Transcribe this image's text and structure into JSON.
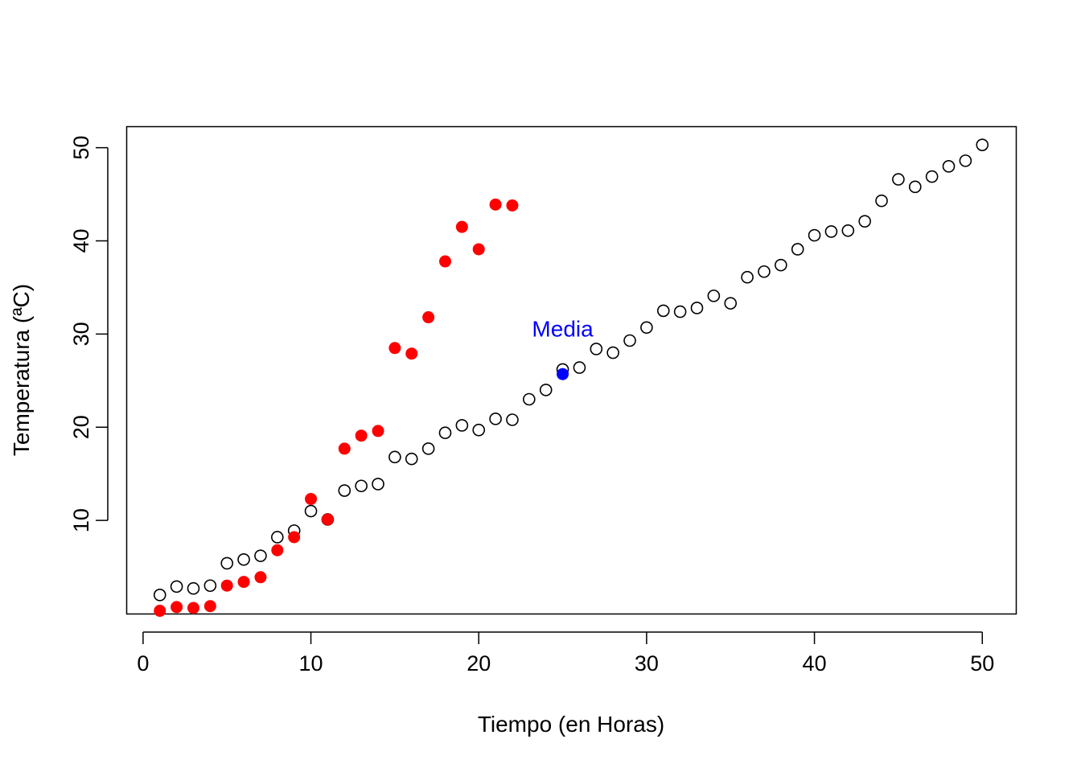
{
  "chart_data": {
    "type": "scatter",
    "title": "",
    "xlabel": "Tiempo (en Horas)",
    "ylabel": "Temperatura (ªC)",
    "xlim": [
      -1,
      52
    ],
    "ylim": [
      0,
      52.3
    ],
    "xticks": [
      0,
      10,
      20,
      30,
      40,
      50
    ],
    "yticks": [
      10,
      20,
      30,
      40,
      50
    ],
    "grid": false,
    "series": [
      {
        "style": "open-circle",
        "color": "#000000",
        "x": [
          1,
          2,
          3,
          4,
          5,
          6,
          7,
          8,
          9,
          10,
          11,
          12,
          13,
          14,
          15,
          16,
          17,
          18,
          19,
          20,
          21,
          22,
          23,
          24,
          25,
          26,
          27,
          28,
          29,
          30,
          31,
          32,
          33,
          34,
          35,
          36,
          37,
          38,
          39,
          40,
          41,
          42,
          43,
          44,
          45,
          46,
          47,
          48,
          49,
          50
        ],
        "y": [
          2.0,
          2.9,
          2.7,
          3.0,
          5.4,
          5.8,
          6.2,
          8.2,
          8.9,
          11.0,
          10.1,
          13.2,
          13.7,
          13.9,
          16.8,
          16.6,
          17.7,
          19.4,
          20.2,
          19.7,
          20.9,
          20.8,
          23.0,
          24.0,
          26.2,
          26.4,
          28.4,
          28.0,
          29.3,
          30.7,
          32.5,
          32.4,
          32.8,
          34.1,
          33.3,
          36.1,
          36.7,
          37.4,
          39.1,
          40.6,
          41.0,
          41.1,
          42.1,
          44.3,
          46.6,
          45.8,
          46.9,
          48.0,
          48.6,
          50.3
        ]
      },
      {
        "style": "filled-circle",
        "color": "#ff0000",
        "x": [
          1,
          2,
          3,
          4,
          5,
          6,
          7,
          8,
          9,
          10,
          11,
          12,
          13,
          14,
          15,
          16,
          17,
          18,
          19,
          20,
          21,
          22
        ],
        "y": [
          0.3,
          0.7,
          0.6,
          0.8,
          3.0,
          3.4,
          3.9,
          6.8,
          8.2,
          12.3,
          10.1,
          17.7,
          19.1,
          19.6,
          28.5,
          27.9,
          31.8,
          37.8,
          41.5,
          39.1,
          43.9,
          43.8
        ]
      },
      {
        "style": "filled-circle",
        "color": "#0000ff",
        "x": [
          25
        ],
        "y": [
          25.7
        ]
      }
    ],
    "annotations": [
      {
        "text": "Media",
        "x": 25,
        "y": 30.5,
        "color": "#0000ff"
      }
    ]
  }
}
